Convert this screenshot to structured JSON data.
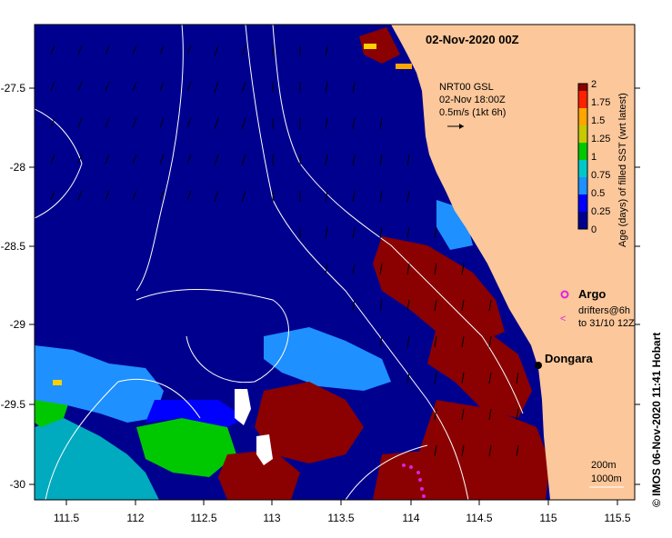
{
  "map": {
    "title": "02-Nov-2020 00Z",
    "current_label": {
      "line1": "NRT00 GSL",
      "line2": "02-Nov 18:00Z",
      "line3": "0.5m/s (1kt 6h)"
    },
    "legend": {
      "argo_label": "Argo",
      "drifters_line1": "drifters@6h",
      "drifters_line2": "to 31/10 12Z",
      "argo_color": "#e020e0"
    },
    "place_label": "Dongara",
    "contours": {
      "line1": "200m",
      "line2": "1000m"
    },
    "credit": "© IMOS 06-Nov-2020 11:41 Hobart",
    "colors": {
      "ocean": "#00008f",
      "land": "#fcc79a",
      "old_sst": "#8b0000"
    }
  },
  "colorbar": {
    "label": "Age (days) of filled SST (wrt latest)",
    "ticks": [
      "0",
      "0.25",
      "0.5",
      "0.75",
      "1",
      "1.25",
      "1.5",
      "1.75",
      "2"
    ],
    "colors": [
      "#00008f",
      "#0000ff",
      "#1e90ff",
      "#00c8c8",
      "#00c800",
      "#c8c800",
      "#ffa500",
      "#ff2000",
      "#8b0000"
    ]
  },
  "axes": {
    "x_ticks": [
      "111.5",
      "112",
      "112.5",
      "113",
      "113.5",
      "114",
      "114.5",
      "115",
      "115.5"
    ],
    "y_ticks": [
      "-27.5",
      "-28",
      "-28.5",
      "-29",
      "-29.5",
      "-30"
    ]
  }
}
